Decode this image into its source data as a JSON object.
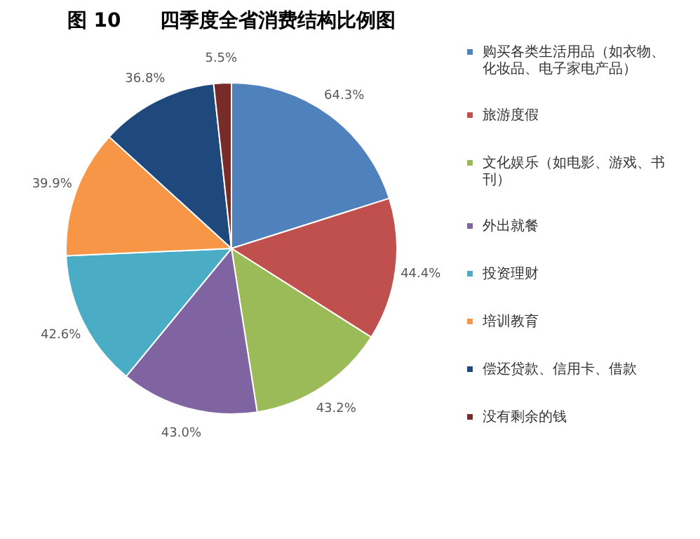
{
  "chart_data": {
    "type": "pie",
    "title": "图 10　　四季度全省消费结构比例图",
    "categories": [
      "购买各类生活用品（如衣物、化妆品、电子家电产品）",
      "旅游度假",
      "文化娱乐（如电影、游戏、书刊）",
      "外出就餐",
      "投资理财",
      "培训教育",
      "偿还贷款、信用卡、借款",
      "没有剩余的钱"
    ],
    "values": [
      64.3,
      44.4,
      43.2,
      43.0,
      42.6,
      39.9,
      36.8,
      5.5
    ],
    "value_labels": [
      "64.3%",
      "44.4%",
      "43.2%",
      "43.0%",
      "42.6%",
      "39.9%",
      "36.8%",
      "5.5%"
    ],
    "colors": [
      "#4f81bd",
      "#c0504d",
      "#9bbb59",
      "#8064a2",
      "#4bacc6",
      "#f79646",
      "#1f497d",
      "#772c2a"
    ],
    "legend": "right"
  }
}
